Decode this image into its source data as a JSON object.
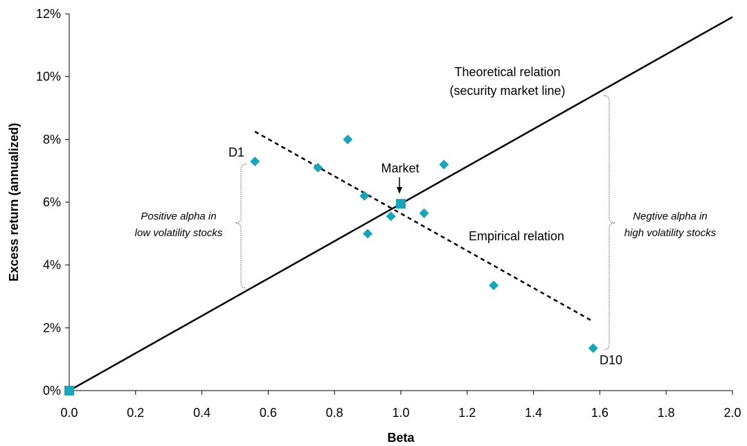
{
  "chart_data": {
    "type": "scatter",
    "xlabel": "Beta",
    "ylabel": "Excess return (annualized)",
    "xlim": [
      0,
      2
    ],
    "ylim": [
      0,
      12
    ],
    "x_ticks": [
      "0.0",
      "0.2",
      "0.4",
      "0.6",
      "0.8",
      "1.0",
      "1.2",
      "1.4",
      "1.6",
      "1.8",
      "2.0"
    ],
    "y_ticks": [
      "0%",
      "2%",
      "4%",
      "6%",
      "8%",
      "10%",
      "12%"
    ],
    "grid": false,
    "colors": {
      "points": "#1ba3b7",
      "lines": "#000000"
    },
    "decile_points": [
      {
        "label": "D1",
        "x": 0.56,
        "y": 7.3
      },
      {
        "x": 0.75,
        "y": 7.1
      },
      {
        "x": 0.84,
        "y": 8.0
      },
      {
        "x": 0.89,
        "y": 6.2
      },
      {
        "x": 0.9,
        "y": 5.0
      },
      {
        "x": 0.97,
        "y": 5.55
      },
      {
        "x": 1.07,
        "y": 5.65
      },
      {
        "x": 1.13,
        "y": 7.2
      },
      {
        "x": 1.28,
        "y": 3.35
      },
      {
        "label": "D10",
        "x": 1.58,
        "y": 1.35
      }
    ],
    "market_points": [
      {
        "x": 0.0,
        "y": 0.0
      },
      {
        "label": "Market",
        "x": 1.0,
        "y": 5.95
      }
    ],
    "theoretical_line": {
      "label_line1": "Theoretical relation",
      "label_line2": "(security market line)",
      "x": [
        0,
        2
      ],
      "y": [
        0,
        11.9
      ]
    },
    "empirical_line": {
      "label": "Empirical relation",
      "x": [
        0.56,
        1.58
      ],
      "y": [
        8.25,
        2.2
      ]
    },
    "annotations": {
      "positive_alpha_line1": "Positive alpha in",
      "positive_alpha_line2": "low volatility stocks",
      "negative_alpha_line1": "Negtive alpha in",
      "negative_alpha_line2": "high volatility stocks"
    }
  }
}
